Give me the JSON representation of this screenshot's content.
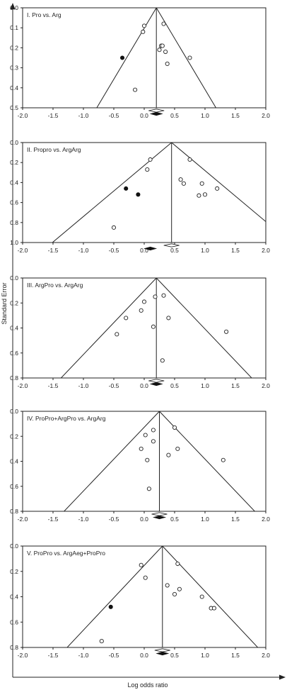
{
  "figure": {
    "y_axis_label": "Standard Error",
    "x_axis_label": "Log odds ratio"
  },
  "chart_data": [
    {
      "type": "scatter",
      "title": "I. Pro vs. Arg",
      "xlim": [
        -2.0,
        2.0
      ],
      "ylim": [
        0.0,
        0.5
      ],
      "y_reversed": true,
      "x_ticks": [
        "-2.0",
        "-1.5",
        "-1.0",
        "-0.5",
        "0.0",
        "0.5",
        "1.0",
        "1.5",
        "2.0"
      ],
      "y_ticks": [
        "0.0",
        "0.1",
        "0.2",
        "0.3",
        "0.4",
        "0.5"
      ],
      "pooled_estimate": 0.2,
      "funnel_apex_se": 0.0,
      "open_points": [
        {
          "x": -0.15,
          "y": 0.41
        },
        {
          "x": -0.02,
          "y": 0.12
        },
        {
          "x": 0.0,
          "y": 0.09
        },
        {
          "x": 0.25,
          "y": 0.21
        },
        {
          "x": 0.28,
          "y": 0.19
        },
        {
          "x": 0.3,
          "y": 0.19
        },
        {
          "x": 0.32,
          "y": 0.08
        },
        {
          "x": 0.35,
          "y": 0.22
        },
        {
          "x": 0.38,
          "y": 0.28
        },
        {
          "x": 0.75,
          "y": 0.25
        }
      ],
      "filled_points": [
        {
          "x": -0.36,
          "y": 0.25
        }
      ],
      "diamond_open": {
        "x": 0.2
      },
      "diamond_filled": {
        "x": 0.2
      }
    },
    {
      "type": "scatter",
      "title": "II. Propro vs. ArgArg",
      "xlim": [
        -2.0,
        2.0
      ],
      "ylim": [
        0.0,
        1.0
      ],
      "y_reversed": true,
      "x_ticks": [
        "-2.0",
        "-1.5",
        "-1.0",
        "-0.5",
        "0.0",
        "0.5",
        "1.0",
        "1.5",
        "2.0"
      ],
      "y_ticks": [
        "0.0",
        "0.2",
        "0.4",
        "0.6",
        "0.8",
        "1.0"
      ],
      "pooled_estimate": 0.45,
      "funnel_apex_se": 0.0,
      "open_points": [
        {
          "x": -0.5,
          "y": 0.85
        },
        {
          "x": 0.05,
          "y": 0.27
        },
        {
          "x": 0.1,
          "y": 0.17
        },
        {
          "x": 0.6,
          "y": 0.37
        },
        {
          "x": 0.65,
          "y": 0.41
        },
        {
          "x": 0.75,
          "y": 0.17
        },
        {
          "x": 0.9,
          "y": 0.53
        },
        {
          "x": 0.95,
          "y": 0.41
        },
        {
          "x": 1.0,
          "y": 0.52
        },
        {
          "x": 1.2,
          "y": 0.46
        }
      ],
      "filled_points": [
        {
          "x": -0.3,
          "y": 0.46
        },
        {
          "x": -0.1,
          "y": 0.52
        }
      ],
      "diamond_open": {
        "x": 0.45
      },
      "diamond_filled": {
        "x": 0.1
      }
    },
    {
      "type": "scatter",
      "title": "III. ArgPro vs. ArgArg",
      "xlim": [
        -2.0,
        2.0
      ],
      "ylim": [
        0.0,
        0.8
      ],
      "y_reversed": true,
      "x_ticks": [
        "-2.0",
        "-1.5",
        "-1.0",
        "-0.5",
        "0.0",
        "0.5",
        "1.0",
        "1.5",
        "2.0"
      ],
      "y_ticks": [
        "0.0",
        "0.2",
        "0.4",
        "0.6",
        "0.8"
      ],
      "pooled_estimate": 0.2,
      "funnel_apex_se": 0.0,
      "open_points": [
        {
          "x": -0.45,
          "y": 0.45
        },
        {
          "x": -0.3,
          "y": 0.32
        },
        {
          "x": -0.05,
          "y": 0.26
        },
        {
          "x": 0.0,
          "y": 0.19
        },
        {
          "x": 0.15,
          "y": 0.39
        },
        {
          "x": 0.18,
          "y": 0.15
        },
        {
          "x": 0.32,
          "y": 0.14
        },
        {
          "x": 0.3,
          "y": 0.66
        },
        {
          "x": 0.4,
          "y": 0.32
        },
        {
          "x": 1.35,
          "y": 0.43
        }
      ],
      "filled_points": [],
      "diamond_open": {
        "x": 0.2
      },
      "diamond_filled": {
        "x": 0.2
      }
    },
    {
      "type": "scatter",
      "title": "IV. ProPro+ArgPro vs. ArgArg",
      "xlim": [
        -2.0,
        2.0
      ],
      "ylim": [
        0.0,
        0.8
      ],
      "y_reversed": true,
      "x_ticks": [
        "-2.0",
        "-1.5",
        "-1.0",
        "-0.5",
        "0.0",
        "0.5",
        "1.0",
        "1.5",
        "2.0"
      ],
      "y_ticks": [
        "0.0",
        "0.2",
        "0.4",
        "0.6",
        "0.8"
      ],
      "pooled_estimate": 0.25,
      "funnel_apex_se": 0.0,
      "open_points": [
        {
          "x": -0.05,
          "y": 0.3
        },
        {
          "x": 0.02,
          "y": 0.19
        },
        {
          "x": 0.05,
          "y": 0.39
        },
        {
          "x": 0.08,
          "y": 0.62
        },
        {
          "x": 0.15,
          "y": 0.15
        },
        {
          "x": 0.15,
          "y": 0.24
        },
        {
          "x": 0.4,
          "y": 0.35
        },
        {
          "x": 0.5,
          "y": 0.13
        },
        {
          "x": 0.55,
          "y": 0.3
        },
        {
          "x": 1.3,
          "y": 0.39
        }
      ],
      "filled_points": [],
      "diamond_open": {
        "x": 0.25
      },
      "diamond_filled": {
        "x": 0.25
      }
    },
    {
      "type": "scatter",
      "title": "V. ProPro vs. ArgAeg+ProPro",
      "xlim": [
        -2.0,
        2.0
      ],
      "ylim": [
        0.0,
        0.8
      ],
      "y_reversed": true,
      "x_ticks": [
        "-2.0",
        "-1.5",
        "-1.0",
        "-0.5",
        "0.0",
        "0.5",
        "1.0",
        "1.5",
        "2.0"
      ],
      "y_ticks": [
        "0.0",
        "0.2",
        "0.4",
        "0.6",
        "0.8"
      ],
      "pooled_estimate": 0.3,
      "funnel_apex_se": 0.0,
      "open_points": [
        {
          "x": -0.7,
          "y": 0.75
        },
        {
          "x": -0.05,
          "y": 0.15
        },
        {
          "x": 0.02,
          "y": 0.25
        },
        {
          "x": 0.38,
          "y": 0.31
        },
        {
          "x": 0.5,
          "y": 0.38
        },
        {
          "x": 0.55,
          "y": 0.14
        },
        {
          "x": 0.58,
          "y": 0.34
        },
        {
          "x": 0.95,
          "y": 0.4
        },
        {
          "x": 1.1,
          "y": 0.49
        },
        {
          "x": 1.15,
          "y": 0.49
        }
      ],
      "filled_points": [
        {
          "x": -0.55,
          "y": 0.48
        }
      ],
      "diamond_open": {
        "x": 0.3
      },
      "diamond_filled": {
        "x": 0.3
      }
    }
  ]
}
